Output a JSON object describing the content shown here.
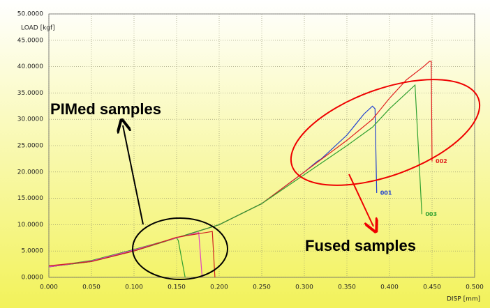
{
  "chart_data": {
    "type": "line",
    "y_label": "LOAD [kgf]",
    "x_label": "DISP [mm]",
    "annotations": [
      "PIMed samples",
      "Fused samples"
    ],
    "xlim": [
      0,
      0.5
    ],
    "ylim": [
      0,
      50
    ],
    "grid": true,
    "xticks": [
      {
        "value": 0,
        "label": "0.000"
      },
      {
        "value": 0.05,
        "label": "0.050"
      },
      {
        "value": 0.1,
        "label": "0.100"
      },
      {
        "value": 0.15,
        "label": "0.150"
      },
      {
        "value": 0.2,
        "label": "0.200"
      },
      {
        "value": 0.25,
        "label": "0.250"
      },
      {
        "value": 0.3,
        "label": "0.300"
      },
      {
        "value": 0.35,
        "label": "0.350"
      },
      {
        "value": 0.4,
        "label": "0.400"
      },
      {
        "value": 0.45,
        "label": "0.450"
      },
      {
        "value": 0.5,
        "label": "0.500"
      }
    ],
    "yticks": [
      {
        "value": 0,
        "label": "0.0000"
      },
      {
        "value": 5,
        "label": "5.0000"
      },
      {
        "value": 10,
        "label": "10.0000"
      },
      {
        "value": 15,
        "label": "15.0000"
      },
      {
        "value": 20,
        "label": "20.0000"
      },
      {
        "value": 25,
        "label": "25.0000"
      },
      {
        "value": 30,
        "label": "30.0000"
      },
      {
        "value": 35,
        "label": "35.0000"
      },
      {
        "value": 40,
        "label": "40.0000"
      },
      {
        "value": 45,
        "label": "45.0000"
      },
      {
        "value": 50,
        "label": "50.0000"
      }
    ],
    "series": [
      {
        "name": "001",
        "color": "#2040d0",
        "x": [
          0,
          0.05,
          0.1,
          0.15,
          0.2,
          0.25,
          0.3,
          0.315,
          0.32,
          0.35,
          0.37,
          0.38,
          0.383,
          0.385
        ],
        "values": [
          2,
          3,
          5,
          7.5,
          10,
          14,
          20,
          22,
          22.5,
          27,
          31,
          32.5,
          32,
          16
        ]
      },
      {
        "name": "002",
        "color": "#e02020",
        "x": [
          0,
          0.05,
          0.1,
          0.15,
          0.2,
          0.25,
          0.3,
          0.35,
          0.38,
          0.4,
          0.42,
          0.44,
          0.447,
          0.449,
          0.45
        ],
        "values": [
          2,
          3,
          5,
          7.5,
          10,
          14,
          20,
          26,
          30,
          34,
          37.5,
          40,
          41,
          41,
          22
        ]
      },
      {
        "name": "003",
        "color": "#30a030",
        "x": [
          0,
          0.05,
          0.1,
          0.15,
          0.2,
          0.25,
          0.3,
          0.35,
          0.38,
          0.4,
          0.42,
          0.43,
          0.438
        ],
        "values": [
          2,
          3,
          5,
          7.5,
          10,
          14,
          19.5,
          25,
          28.5,
          32,
          35,
          36.5,
          12
        ]
      },
      {
        "color": "#30a030",
        "x": [
          0,
          0.05,
          0.1,
          0.15,
          0.152,
          0.16
        ],
        "values": [
          2,
          3.2,
          5.3,
          7.5,
          7,
          0
        ]
      },
      {
        "color": "#e040c0",
        "x": [
          0,
          0.05,
          0.1,
          0.15,
          0.176,
          0.18
        ],
        "values": [
          2,
          3.1,
          5.2,
          7.5,
          8.5,
          0
        ]
      },
      {
        "color": "#d02020",
        "x": [
          0,
          0.05,
          0.1,
          0.15,
          0.192,
          0.195
        ],
        "values": [
          2.2,
          3,
          5,
          7.6,
          8.7,
          0
        ]
      }
    ]
  }
}
